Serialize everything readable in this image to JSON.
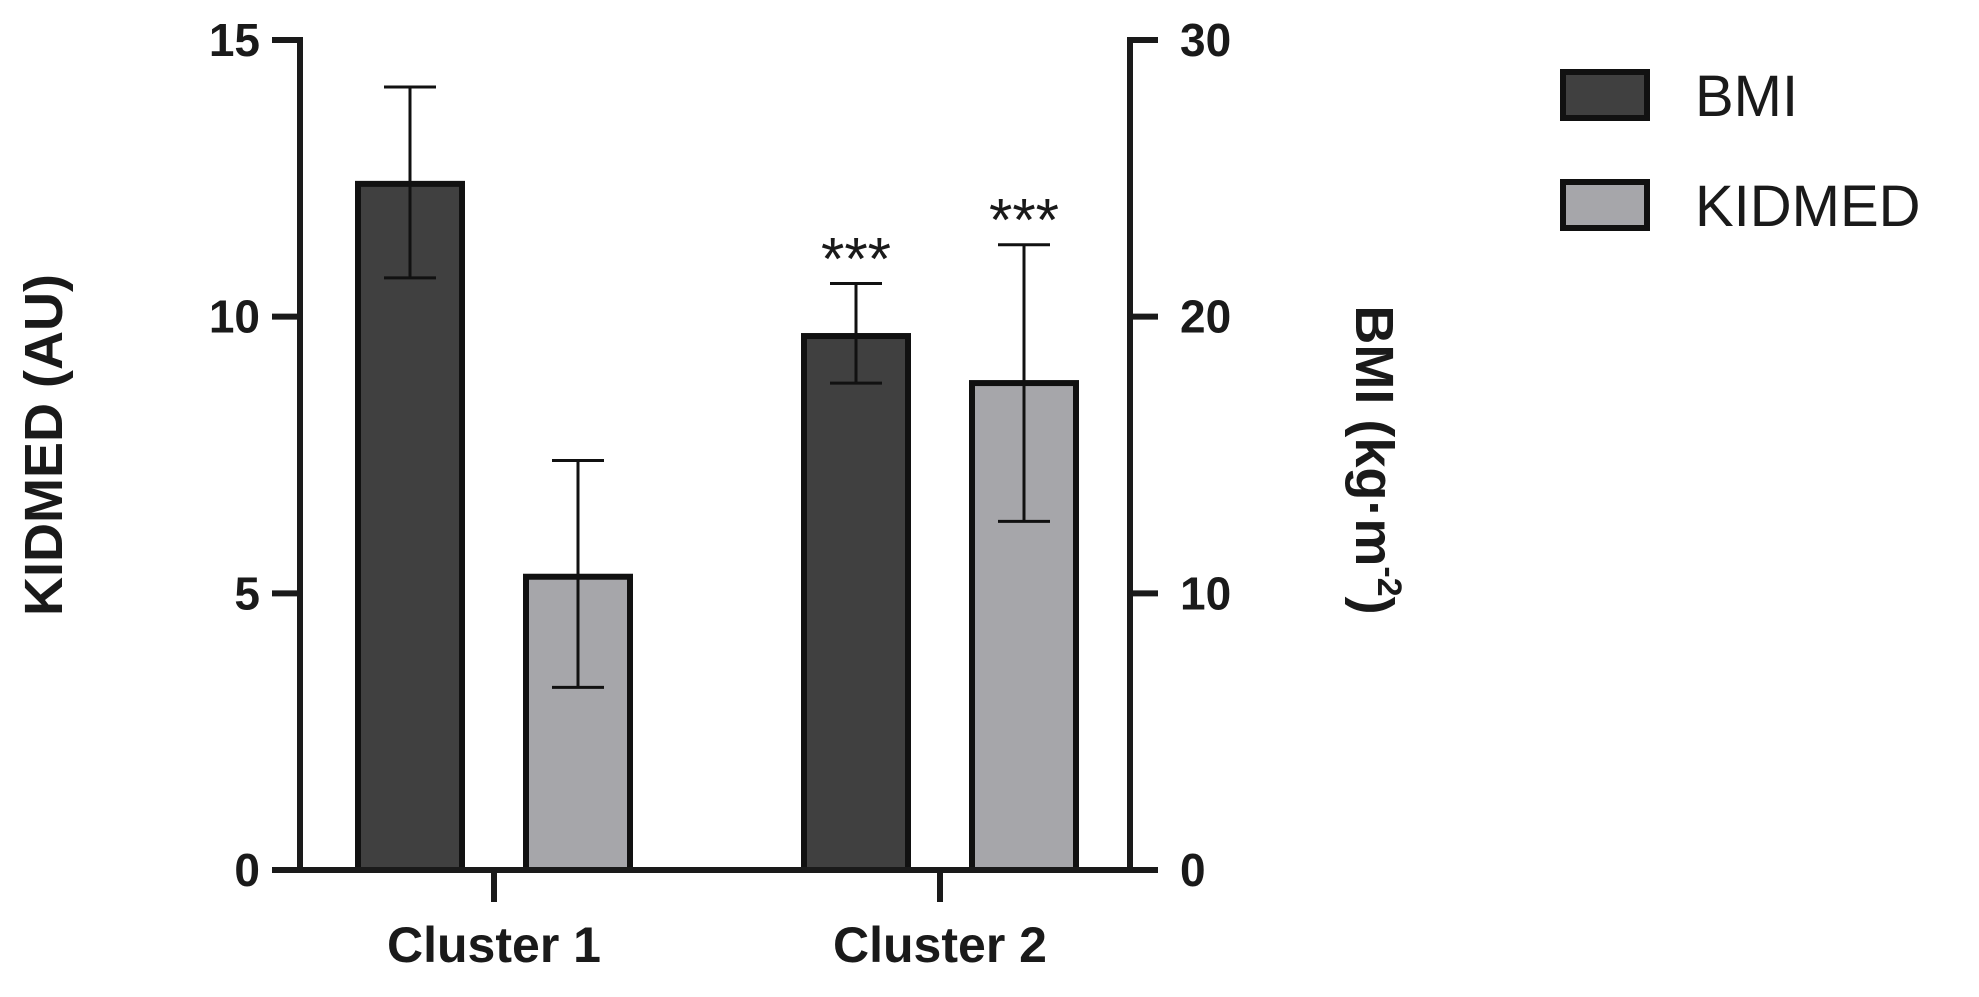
{
  "chart_data": {
    "type": "bar",
    "categories": [
      "Cluster 1",
      "Cluster 2"
    ],
    "left_axis": {
      "label": "KIDMED (AU)",
      "ylim": [
        0,
        15
      ],
      "ticks": [
        "0",
        "5",
        "10",
        "15"
      ]
    },
    "right_axis": {
      "label_main": "BMI (kg·m",
      "label_sup": "-2",
      "label_end": ")",
      "ylim": [
        0,
        30
      ],
      "ticks": [
        "0",
        "10",
        "20",
        "30"
      ]
    },
    "series": [
      {
        "name": "BMI",
        "axis": "right",
        "color": "#404040",
        "values": [
          24.8,
          19.3
        ],
        "error_low": [
          21.4,
          17.6
        ],
        "error_high": [
          28.3,
          21.2
        ]
      },
      {
        "name": "KIDMED",
        "axis": "left",
        "color": "#a6a6aa",
        "values": [
          5.3,
          8.8
        ],
        "error_low": [
          3.3,
          6.3
        ],
        "error_high": [
          7.4,
          11.3
        ]
      }
    ],
    "annotations": [
      {
        "text": "***",
        "series": 0,
        "category": 1
      },
      {
        "text": "***",
        "series": 1,
        "category": 1
      }
    ],
    "legend_position": "top-right",
    "grid": false
  }
}
